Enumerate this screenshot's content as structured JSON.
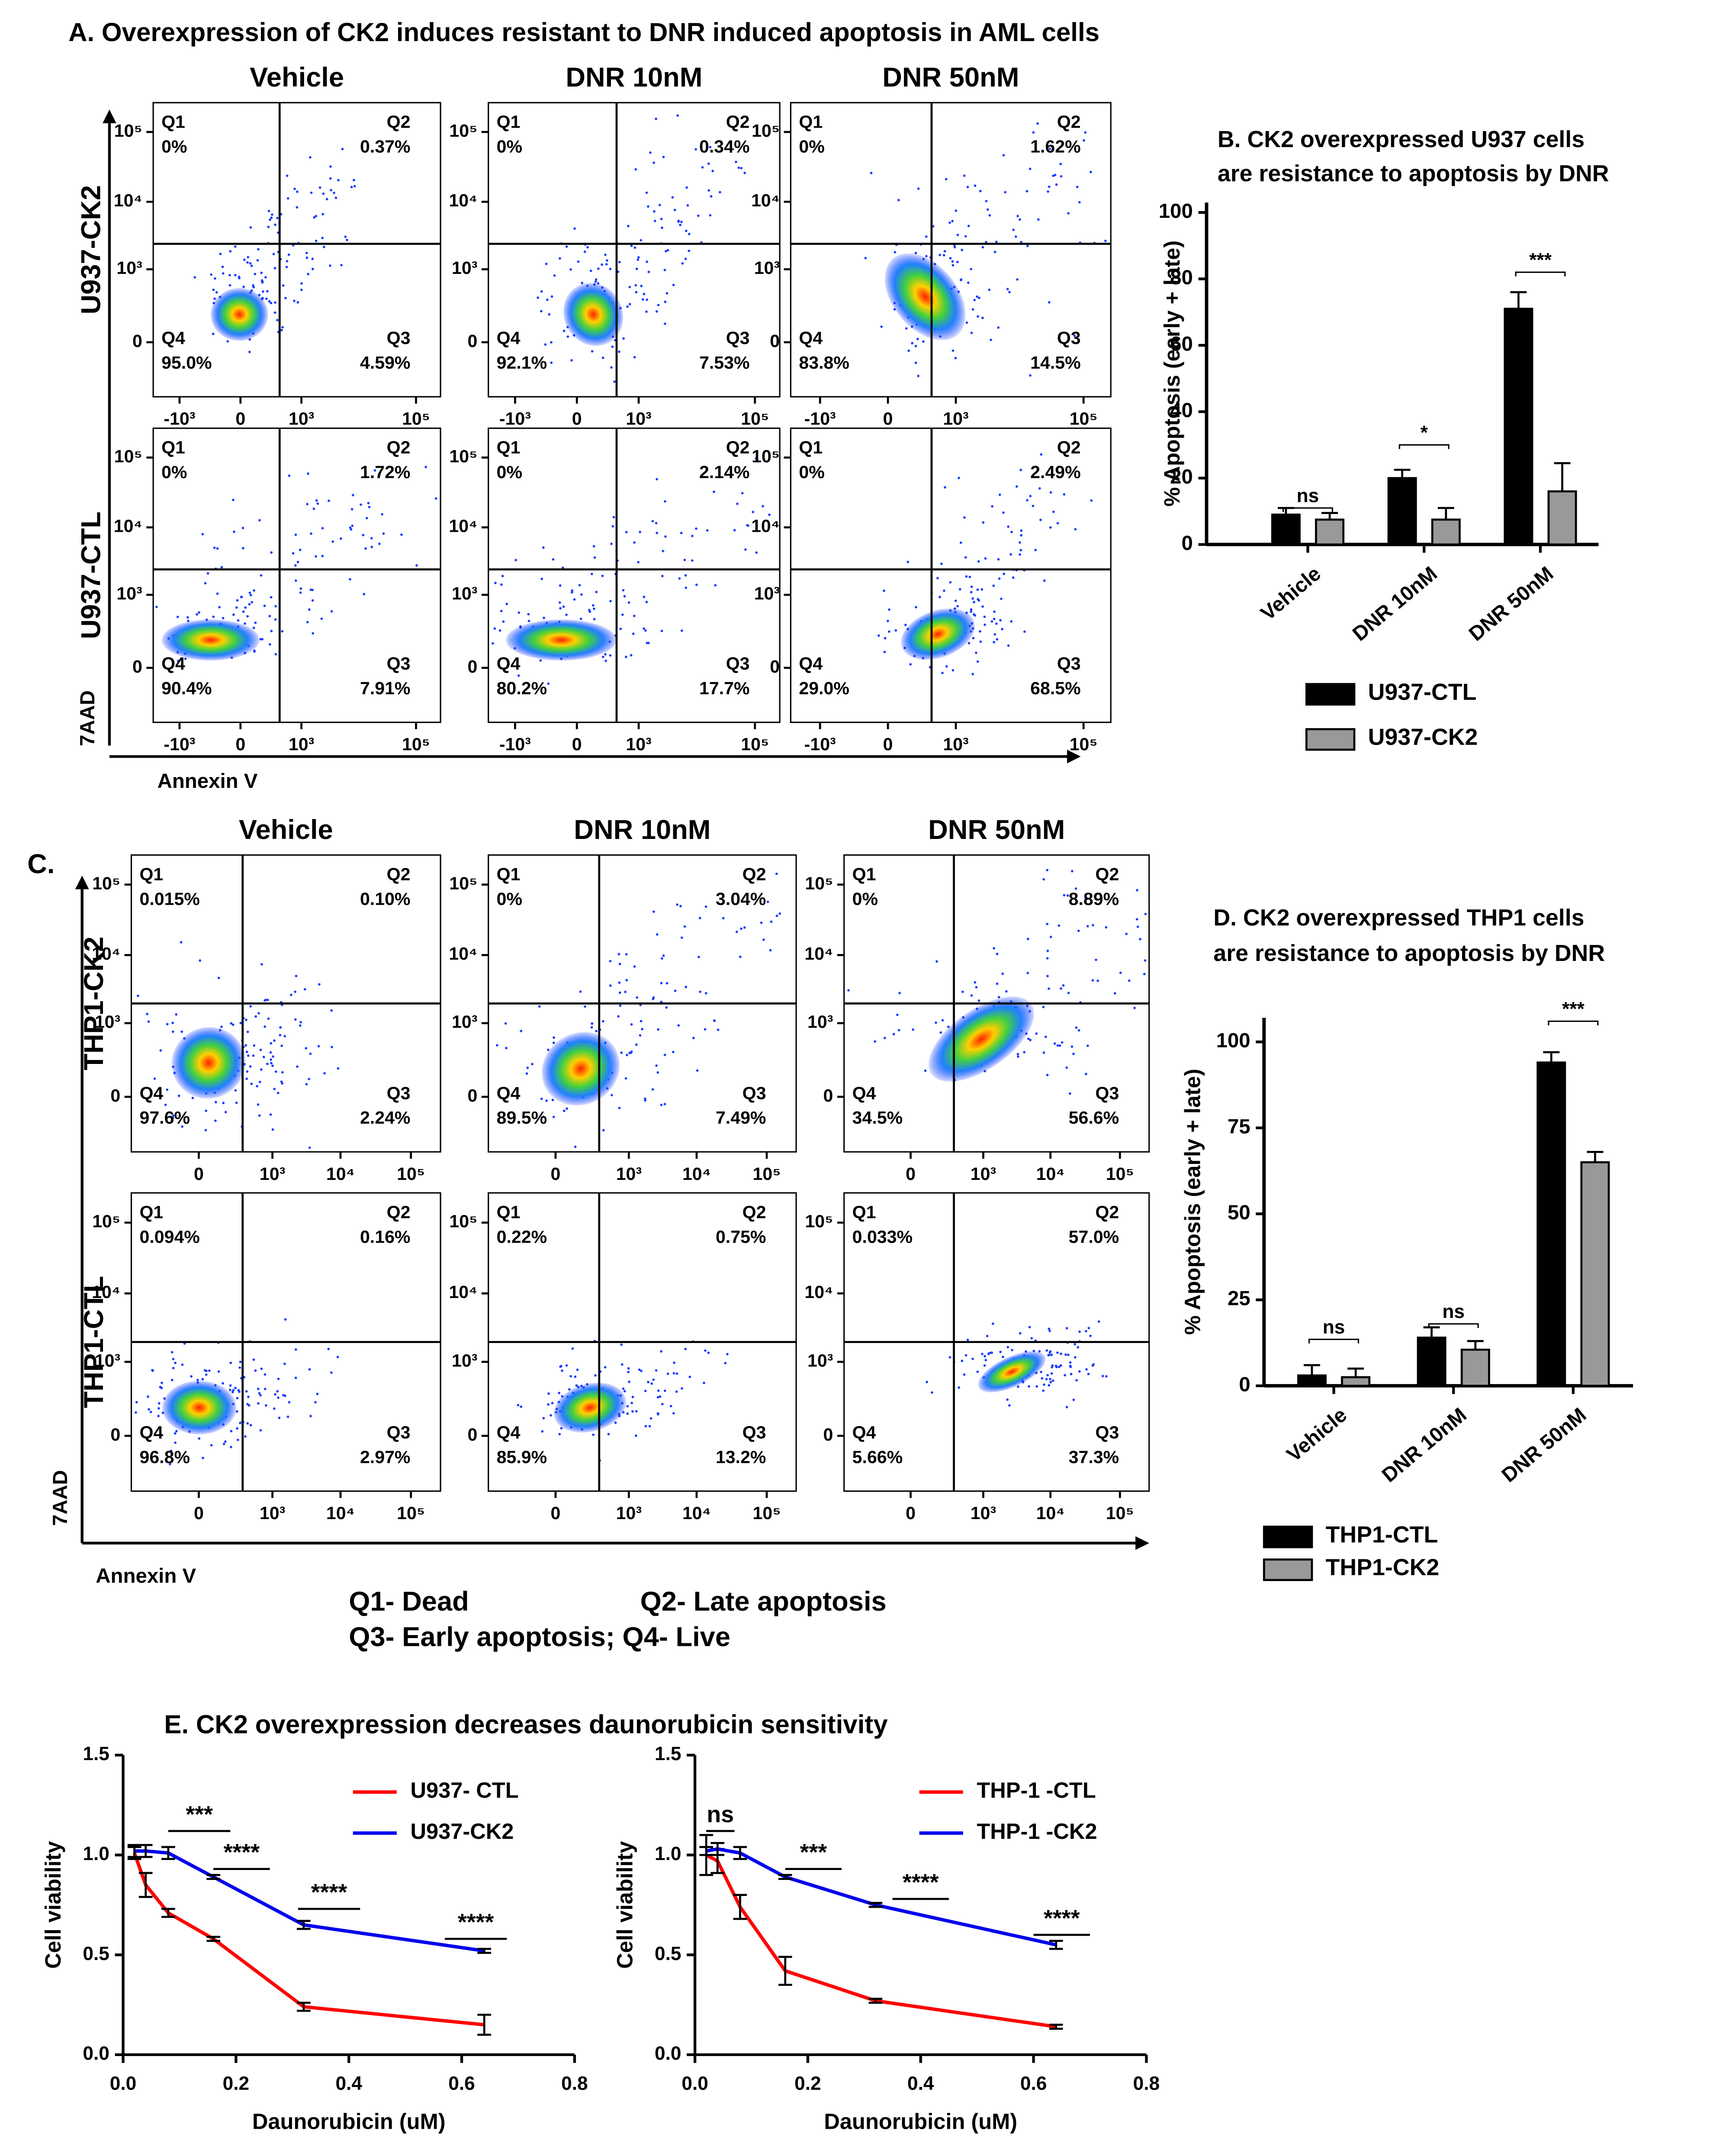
{
  "chart_data": [
    {
      "type": "flow",
      "title": "A. Overexpression of CK2 induces resistant to DNR induced apoptosis in AML cells",
      "columns": [
        "Vehicle",
        "DNR 10nM",
        "DNR 50nM"
      ],
      "rows": [
        "U937-CK2",
        "U937-CTL"
      ],
      "xlabel": "Annexin V",
      "ylabel": "7AAD",
      "quadrants": [
        "Q1",
        "Q2",
        "Q3",
        "Q4"
      ],
      "xlim": [
        -3000,
        262144
      ],
      "xticks": [
        {
          "value": -1000,
          "label": "-10³"
        },
        0,
        {
          "value": 1000,
          "label": "10³"
        },
        {
          "value": 100000,
          "label": "10⁵"
        }
      ],
      "ylim": [
        -500,
        262144
      ],
      "yticks": [
        0,
        {
          "value": 1000,
          "label": "10³"
        },
        {
          "value": 10000,
          "label": "10⁴"
        },
        {
          "value": 100000,
          "label": "10⁵"
        }
      ],
      "plots": [
        [
          {
            "values": [
              0,
              0.37,
              4.59,
              95.0
            ],
            "value_labels": [
              "0%",
              "0.37%",
              "4.59%",
              "95.0%"
            ]
          },
          {
            "values": [
              0,
              0.34,
              7.53,
              92.1
            ],
            "value_labels": [
              "0%",
              "0.34%",
              "7.53%",
              "92.1%"
            ]
          },
          {
            "values": [
              0,
              1.62,
              14.5,
              83.8
            ],
            "value_labels": [
              "0%",
              "1.62%",
              "14.5%",
              "83.8%"
            ]
          }
        ],
        [
          {
            "values": [
              0,
              1.72,
              7.91,
              90.4
            ],
            "value_labels": [
              "0%",
              "1.72%",
              "7.91%",
              "90.4%"
            ]
          },
          {
            "values": [
              0,
              2.14,
              17.7,
              80.2
            ],
            "value_labels": [
              "0%",
              "2.14%",
              "17.7%",
              "80.2%"
            ]
          },
          {
            "values": [
              0,
              2.49,
              68.5,
              29.0
            ],
            "value_labels": [
              "0%",
              "2.49%",
              "68.5%",
              "29.0%"
            ]
          }
        ]
      ]
    },
    {
      "type": "flow",
      "title": "C.",
      "columns": [
        "Vehicle",
        "DNR 10nM",
        "DNR 50nM"
      ],
      "rows": [
        "THP1-CK2",
        "THP1-CTL"
      ],
      "xlabel": "Annexin V",
      "ylabel": "7AAD",
      "quadrants": [
        "Q1",
        "Q2",
        "Q3",
        "Q4"
      ],
      "notes": [
        "Q1- Dead",
        "Q2- Late apoptosis",
        "Q3- Early apoptosis; Q4- Live"
      ],
      "xlim": [
        -800,
        262144
      ],
      "xticks": [
        0,
        {
          "value": 1000,
          "label": "10³"
        },
        {
          "value": 10000,
          "label": "10⁴"
        },
        {
          "value": 100000,
          "label": "10⁵"
        }
      ],
      "ylim": [
        -500,
        262144
      ],
      "yticks": [
        0,
        {
          "value": 1000,
          "label": "10³"
        },
        {
          "value": 10000,
          "label": "10⁴"
        },
        {
          "value": 100000,
          "label": "10⁵"
        }
      ],
      "plots": [
        [
          {
            "values": [
              0.015,
              0.1,
              2.24,
              97.6
            ],
            "value_labels": [
              "0.015%",
              "0.10%",
              "2.24%",
              "97.6%"
            ]
          },
          {
            "values": [
              0,
              3.04,
              7.49,
              89.5
            ],
            "value_labels": [
              "0%",
              "3.04%",
              "7.49%",
              "89.5%"
            ]
          },
          {
            "values": [
              0,
              8.89,
              56.6,
              34.5
            ],
            "value_labels": [
              "0%",
              "8.89%",
              "56.6%",
              "34.5%"
            ]
          }
        ],
        [
          {
            "values": [
              0.094,
              0.16,
              2.97,
              96.8
            ],
            "value_labels": [
              "0.094%",
              "0.16%",
              "2.97%",
              "96.8%"
            ]
          },
          {
            "values": [
              0.22,
              0.75,
              13.2,
              85.9
            ],
            "value_labels": [
              "0.22%",
              "0.75%",
              "13.2%",
              "85.9%"
            ]
          },
          {
            "values": [
              0.033,
              57.0,
              37.3,
              5.66
            ],
            "value_labels": [
              "0.033%",
              "57.0%",
              "37.3%",
              "5.66%"
            ]
          }
        ]
      ]
    },
    {
      "type": "bar",
      "title": [
        "B. CK2 overexpressed U937 cells",
        "are resistance to apoptosis by DNR"
      ],
      "ylabel": "% Apoptosis (early + late)",
      "categories": [
        "Vehicle",
        "DNR 10nM",
        "DNR 50nM"
      ],
      "ylim": [
        0,
        103
      ],
      "yticks": [
        0,
        20,
        40,
        60,
        80,
        100
      ],
      "series": [
        {
          "name": "U937-CTL",
          "color": "#000000",
          "values": [
            9,
            20,
            71
          ],
          "errors": [
            2,
            2.5,
            5
          ]
        },
        {
          "name": "U937-CK2",
          "color": "#999999",
          "values": [
            7.5,
            7.5,
            16
          ],
          "errors": [
            2,
            3.5,
            8.5
          ]
        }
      ],
      "annotations": [
        {
          "text": "ns",
          "category": 0,
          "y": 11
        },
        {
          "text": "*",
          "category": 1,
          "y": 30
        },
        {
          "text": "***",
          "category": 2,
          "y": 82
        }
      ]
    },
    {
      "type": "bar",
      "title": [
        "D. CK2 overexpressed THP1 cells",
        "are resistance to apoptosis by DNR"
      ],
      "ylabel": "% Apoptosis (early + late)",
      "categories": [
        "Vehicle",
        "DNR 10nM",
        "DNR 50nM"
      ],
      "ylim": [
        0,
        107
      ],
      "yticks": [
        0,
        25,
        50,
        75,
        100
      ],
      "series": [
        {
          "name": "THP1-CTL",
          "color": "#000000",
          "values": [
            3,
            14,
            94
          ],
          "errors": [
            3,
            3,
            3
          ]
        },
        {
          "name": "THP1-CK2",
          "color": "#999999",
          "values": [
            2.5,
            10.5,
            65
          ],
          "errors": [
            2.5,
            2.5,
            3
          ]
        }
      ],
      "annotations": [
        {
          "text": "ns",
          "category": 0,
          "y": 13.5
        },
        {
          "text": "ns",
          "category": 1,
          "y": 18
        },
        {
          "text": "***",
          "category": 2,
          "y": 106
        }
      ]
    },
    {
      "type": "line",
      "title": "E. CK2 overexpression decreases daunorubicin sensitivity",
      "xlabel": "Daunorubicin (uM)",
      "ylabel": "Cell viability",
      "x": [
        0.02,
        0.04,
        0.08,
        0.16,
        0.32,
        0.64
      ],
      "xlim": [
        0,
        0.8
      ],
      "xticks": [
        {
          "value": 0,
          "label": "0.0"
        },
        0.2,
        0.4,
        0.6,
        0.8
      ],
      "ylim": [
        0,
        1.5
      ],
      "yticks": [
        {
          "value": 0,
          "label": "0.0"
        },
        0.5,
        {
          "value": 1,
          "label": "1.0"
        },
        1.5
      ],
      "series": [
        {
          "name": "U937- CTL",
          "color": "#ff0000",
          "values": [
            1.01,
            0.85,
            0.71,
            0.58,
            0.24,
            0.15
          ],
          "errors": [
            0.03,
            0.06,
            0.02,
            0.01,
            0.02,
            0.05
          ]
        },
        {
          "name": "U937-CK2",
          "color": "#0000ee",
          "values": [
            1.02,
            1.02,
            1.01,
            0.89,
            0.65,
            0.52
          ],
          "errors": [
            0.03,
            0.03,
            0.03,
            0.01,
            0.02,
            0.01
          ]
        }
      ],
      "annotations": [
        {
          "text": "***",
          "x": [
            0.08,
            0.19
          ],
          "y": 1.12
        },
        {
          "text": "****",
          "x": [
            0.16,
            0.26
          ],
          "y": 0.93
        },
        {
          "text": "****",
          "x": [
            0.31,
            0.42
          ],
          "y": 0.73
        },
        {
          "text": "****",
          "x": [
            0.57,
            0.68
          ],
          "y": 0.58
        }
      ]
    },
    {
      "type": "line",
      "xlabel": "Daunorubicin (uM)",
      "ylabel": "Cell viability",
      "x": [
        0.02,
        0.04,
        0.08,
        0.16,
        0.32,
        0.64
      ],
      "xlim": [
        0,
        0.8
      ],
      "xticks": [
        {
          "value": 0,
          "label": "0.0"
        },
        0.2,
        0.4,
        0.6,
        0.8
      ],
      "ylim": [
        0,
        1.5
      ],
      "yticks": [
        {
          "value": 0,
          "label": "0.0"
        },
        0.5,
        {
          "value": 1,
          "label": "1.0"
        },
        1.5
      ],
      "series": [
        {
          "name": "THP-1 -CTL",
          "color": "#ff0000",
          "values": [
            1.0,
            0.97,
            0.74,
            0.42,
            0.27,
            0.14
          ],
          "errors": [
            0.1,
            0.06,
            0.06,
            0.07,
            0.01,
            0.01
          ]
        },
        {
          "name": "THP-1 -CK2",
          "color": "#0000ee",
          "values": [
            1.02,
            1.03,
            1.01,
            0.89,
            0.75,
            0.55
          ],
          "errors": [
            0.02,
            0.03,
            0.03,
            0.01,
            0.01,
            0.02
          ]
        }
      ],
      "annotations": [
        {
          "text": "ns",
          "x": [
            0.02,
            0.07
          ],
          "y": 1.12
        },
        {
          "text": "***",
          "x": [
            0.16,
            0.26
          ],
          "y": 0.93
        },
        {
          "text": "****",
          "x": [
            0.35,
            0.45
          ],
          "y": 0.78
        },
        {
          "text": "****",
          "x": [
            0.6,
            0.7
          ],
          "y": 0.6
        }
      ]
    }
  ]
}
